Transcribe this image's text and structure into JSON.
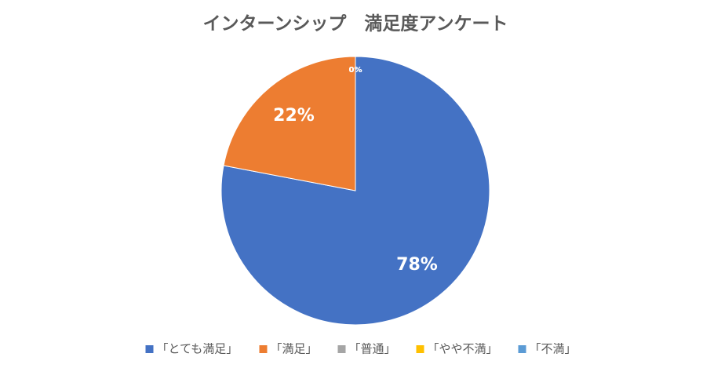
{
  "chart_data": {
    "type": "pie",
    "title": "インターンシップ　満足度アンケート",
    "categories": [
      "「とても満足」",
      "「満足」",
      "「普通」",
      "「やや不満」",
      "「不満」"
    ],
    "values": [
      78,
      22,
      0,
      0,
      0
    ],
    "value_labels": [
      "78%",
      "22%",
      "0%",
      "0%",
      "0%"
    ],
    "colors": [
      "#4472c4",
      "#ed7d31",
      "#a5a5a5",
      "#ffc000",
      "#5b9bd5"
    ],
    "legend": "bottom"
  }
}
